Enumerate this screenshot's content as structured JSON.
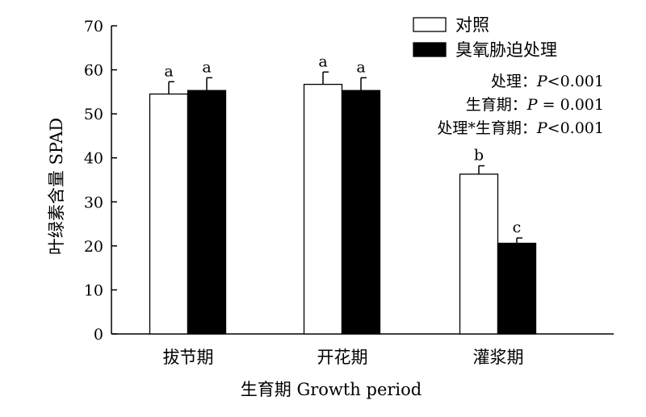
{
  "chart_data": {
    "type": "bar",
    "categories": [
      "拔节期",
      "开花期",
      "灌浆期"
    ],
    "series": [
      {
        "name": "对照",
        "values": [
          54.5,
          56.7,
          36.3
        ],
        "errors": [
          2.8,
          2.8,
          1.9
        ],
        "letters": [
          "a",
          "a",
          "b"
        ],
        "color": "#ffffff"
      },
      {
        "name": "臭氧胁迫处理",
        "values": [
          55.3,
          55.3,
          20.6
        ],
        "errors": [
          2.9,
          2.9,
          1.2
        ],
        "letters": [
          "a",
          "a",
          "c"
        ],
        "color": "#000000"
      }
    ],
    "xlabel": "生育期 Growth period",
    "ylabel": "叶绿素含量 SPAD",
    "ylim": [
      0,
      70
    ],
    "yticks": [
      0,
      10,
      20,
      30,
      40,
      50,
      60,
      70
    ],
    "grid": false,
    "legend_position": "top-right",
    "annotations": [
      {
        "label": "处理：",
        "p": "P",
        "rest": "<0.001"
      },
      {
        "label": "生育期：",
        "p": "P",
        "rest": " = 0.001"
      },
      {
        "label": "处理*生育期：",
        "p": "P",
        "rest": "<0.001"
      }
    ]
  }
}
